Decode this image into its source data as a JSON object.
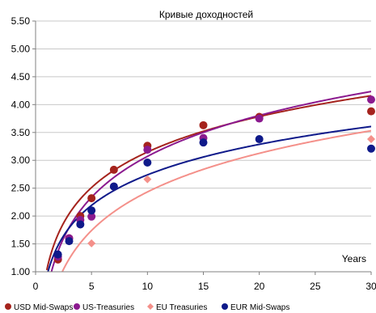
{
  "chart_data": {
    "type": "scatter",
    "title": "Кривые доходностей",
    "xlabel": "Years",
    "ylabel": "",
    "xlim": [
      0,
      30
    ],
    "ylim": [
      1.0,
      5.5
    ],
    "x_ticks": [
      0,
      5,
      10,
      15,
      20,
      25,
      30
    ],
    "y_ticks": [
      1.0,
      1.5,
      2.0,
      2.5,
      3.0,
      3.5,
      4.0,
      4.5,
      5.0,
      5.5
    ],
    "x_tick_labels": [
      "0",
      "5",
      "10",
      "15",
      "20",
      "25",
      "30"
    ],
    "y_tick_labels": [
      "1.00",
      "1.50",
      "2.00",
      "2.50",
      "3.00",
      "3.50",
      "4.00",
      "4.50",
      "5.00",
      "5.50"
    ],
    "grid": "horizontal",
    "legend_position": "bottom",
    "series": [
      {
        "name": "USD Mid-Swaps",
        "color": "#a5231d",
        "points": [
          [
            2,
            1.22
          ],
          [
            3,
            1.6
          ],
          [
            4,
            2.0
          ],
          [
            5,
            2.32
          ],
          [
            7,
            2.83
          ],
          [
            10,
            3.26
          ],
          [
            15,
            3.63
          ],
          [
            20,
            3.78
          ],
          [
            30,
            3.88
          ]
        ],
        "trend": {
          "type": "log",
          "a": 1.03,
          "b": 0.92
        }
      },
      {
        "name": "US-Treasuries",
        "color": "#8b1a8f",
        "points": [
          [
            2,
            1.27
          ],
          [
            3,
            1.6
          ],
          [
            4,
            1.93
          ],
          [
            5,
            1.99
          ],
          [
            7,
            2.53
          ],
          [
            10,
            3.19
          ],
          [
            15,
            3.4
          ],
          [
            20,
            3.75
          ],
          [
            30,
            4.09
          ]
        ],
        "trend": {
          "type": "log",
          "a": 0.63,
          "b": 1.06
        }
      },
      {
        "name": "EU Treasuries",
        "color": "#f4908a",
        "points": [
          [
            5,
            1.51
          ],
          [
            10,
            2.66
          ],
          [
            30,
            3.38
          ]
        ],
        "trend": {
          "type": "log",
          "a": 0.13,
          "b": 1.0
        }
      },
      {
        "name": "EUR Mid-Swaps",
        "color": "#0f1a8a",
        "points": [
          [
            2,
            1.31
          ],
          [
            3,
            1.55
          ],
          [
            4,
            1.85
          ],
          [
            5,
            2.1
          ],
          [
            7,
            2.53
          ],
          [
            10,
            2.96
          ],
          [
            15,
            3.32
          ],
          [
            20,
            3.38
          ],
          [
            30,
            3.21
          ]
        ],
        "trend": {
          "type": "log",
          "a": 0.92,
          "b": 0.79
        }
      }
    ]
  }
}
